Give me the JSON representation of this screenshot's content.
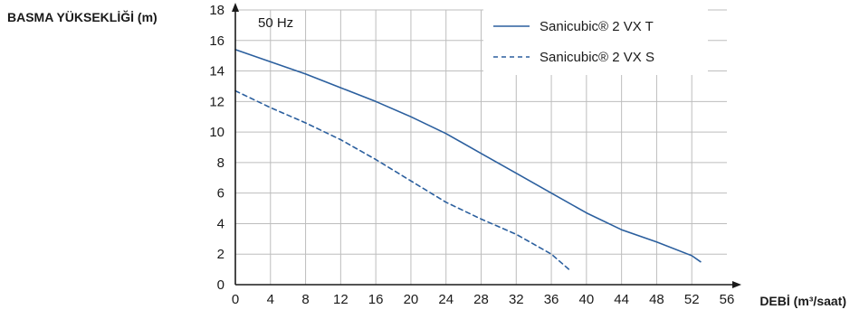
{
  "chart_data": {
    "type": "line",
    "xlabel": "DEBİ (m³/saat)",
    "ylabel": "BASMA YÜKSEKLİĞİ (m)",
    "annotation": "50 Hz",
    "xlim": [
      0,
      56
    ],
    "ylim": [
      0,
      18
    ],
    "xticks": [
      0,
      4,
      8,
      12,
      16,
      20,
      24,
      28,
      32,
      36,
      40,
      44,
      48,
      52,
      56
    ],
    "yticks": [
      0,
      2,
      4,
      6,
      8,
      10,
      12,
      14,
      16,
      18
    ],
    "grid": true,
    "legend_position": "top-right",
    "series": [
      {
        "name": "Sanicubic® 2 VX T",
        "style": "solid",
        "color": "#2b5f9e",
        "x": [
          0,
          4,
          8,
          12,
          16,
          20,
          24,
          28,
          32,
          36,
          40,
          44,
          48,
          52,
          53
        ],
        "y": [
          15.4,
          14.6,
          13.8,
          12.9,
          12.0,
          11.0,
          9.9,
          8.6,
          7.3,
          6.0,
          4.7,
          3.6,
          2.8,
          1.9,
          1.5
        ]
      },
      {
        "name": "Sanicubic® 2 VX S",
        "style": "dashed",
        "color": "#2b5f9e",
        "x": [
          0,
          4,
          8,
          12,
          16,
          20,
          24,
          28,
          32,
          36,
          38
        ],
        "y": [
          12.7,
          11.6,
          10.6,
          9.5,
          8.2,
          6.8,
          5.4,
          4.3,
          3.3,
          2.0,
          1.0
        ]
      }
    ]
  }
}
